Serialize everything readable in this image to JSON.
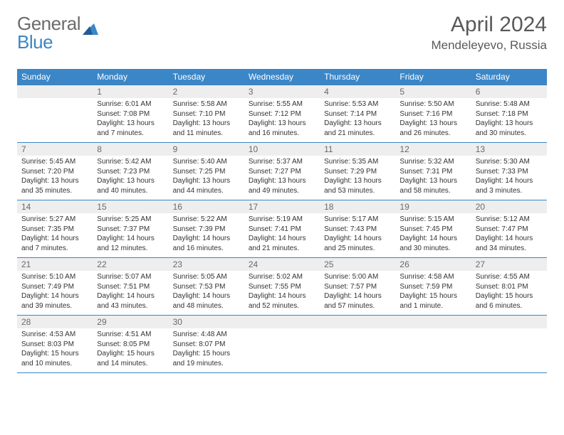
{
  "brand": {
    "part1": "General",
    "part2": "Blue",
    "accent_color": "#3b86c6",
    "text_color": "#6b6b6b"
  },
  "header": {
    "month": "April 2024",
    "location": "Mendeleyevo, Russia"
  },
  "colors": {
    "header_bg": "#3b86c6",
    "header_text": "#ffffff",
    "daynum_bg": "#eeeeee",
    "daynum_text": "#6a6a6a",
    "border": "#3b86c6",
    "body_text": "#333333",
    "page_bg": "#ffffff"
  },
  "daysOfWeek": [
    "Sunday",
    "Monday",
    "Tuesday",
    "Wednesday",
    "Thursday",
    "Friday",
    "Saturday"
  ],
  "weeks": [
    [
      {
        "empty": true
      },
      {
        "day": "1",
        "sunrise": "Sunrise: 6:01 AM",
        "sunset": "Sunset: 7:08 PM",
        "daylight": "Daylight: 13 hours and 7 minutes."
      },
      {
        "day": "2",
        "sunrise": "Sunrise: 5:58 AM",
        "sunset": "Sunset: 7:10 PM",
        "daylight": "Daylight: 13 hours and 11 minutes."
      },
      {
        "day": "3",
        "sunrise": "Sunrise: 5:55 AM",
        "sunset": "Sunset: 7:12 PM",
        "daylight": "Daylight: 13 hours and 16 minutes."
      },
      {
        "day": "4",
        "sunrise": "Sunrise: 5:53 AM",
        "sunset": "Sunset: 7:14 PM",
        "daylight": "Daylight: 13 hours and 21 minutes."
      },
      {
        "day": "5",
        "sunrise": "Sunrise: 5:50 AM",
        "sunset": "Sunset: 7:16 PM",
        "daylight": "Daylight: 13 hours and 26 minutes."
      },
      {
        "day": "6",
        "sunrise": "Sunrise: 5:48 AM",
        "sunset": "Sunset: 7:18 PM",
        "daylight": "Daylight: 13 hours and 30 minutes."
      }
    ],
    [
      {
        "day": "7",
        "sunrise": "Sunrise: 5:45 AM",
        "sunset": "Sunset: 7:20 PM",
        "daylight": "Daylight: 13 hours and 35 minutes."
      },
      {
        "day": "8",
        "sunrise": "Sunrise: 5:42 AM",
        "sunset": "Sunset: 7:23 PM",
        "daylight": "Daylight: 13 hours and 40 minutes."
      },
      {
        "day": "9",
        "sunrise": "Sunrise: 5:40 AM",
        "sunset": "Sunset: 7:25 PM",
        "daylight": "Daylight: 13 hours and 44 minutes."
      },
      {
        "day": "10",
        "sunrise": "Sunrise: 5:37 AM",
        "sunset": "Sunset: 7:27 PM",
        "daylight": "Daylight: 13 hours and 49 minutes."
      },
      {
        "day": "11",
        "sunrise": "Sunrise: 5:35 AM",
        "sunset": "Sunset: 7:29 PM",
        "daylight": "Daylight: 13 hours and 53 minutes."
      },
      {
        "day": "12",
        "sunrise": "Sunrise: 5:32 AM",
        "sunset": "Sunset: 7:31 PM",
        "daylight": "Daylight: 13 hours and 58 minutes."
      },
      {
        "day": "13",
        "sunrise": "Sunrise: 5:30 AM",
        "sunset": "Sunset: 7:33 PM",
        "daylight": "Daylight: 14 hours and 3 minutes."
      }
    ],
    [
      {
        "day": "14",
        "sunrise": "Sunrise: 5:27 AM",
        "sunset": "Sunset: 7:35 PM",
        "daylight": "Daylight: 14 hours and 7 minutes."
      },
      {
        "day": "15",
        "sunrise": "Sunrise: 5:25 AM",
        "sunset": "Sunset: 7:37 PM",
        "daylight": "Daylight: 14 hours and 12 minutes."
      },
      {
        "day": "16",
        "sunrise": "Sunrise: 5:22 AM",
        "sunset": "Sunset: 7:39 PM",
        "daylight": "Daylight: 14 hours and 16 minutes."
      },
      {
        "day": "17",
        "sunrise": "Sunrise: 5:19 AM",
        "sunset": "Sunset: 7:41 PM",
        "daylight": "Daylight: 14 hours and 21 minutes."
      },
      {
        "day": "18",
        "sunrise": "Sunrise: 5:17 AM",
        "sunset": "Sunset: 7:43 PM",
        "daylight": "Daylight: 14 hours and 25 minutes."
      },
      {
        "day": "19",
        "sunrise": "Sunrise: 5:15 AM",
        "sunset": "Sunset: 7:45 PM",
        "daylight": "Daylight: 14 hours and 30 minutes."
      },
      {
        "day": "20",
        "sunrise": "Sunrise: 5:12 AM",
        "sunset": "Sunset: 7:47 PM",
        "daylight": "Daylight: 14 hours and 34 minutes."
      }
    ],
    [
      {
        "day": "21",
        "sunrise": "Sunrise: 5:10 AM",
        "sunset": "Sunset: 7:49 PM",
        "daylight": "Daylight: 14 hours and 39 minutes."
      },
      {
        "day": "22",
        "sunrise": "Sunrise: 5:07 AM",
        "sunset": "Sunset: 7:51 PM",
        "daylight": "Daylight: 14 hours and 43 minutes."
      },
      {
        "day": "23",
        "sunrise": "Sunrise: 5:05 AM",
        "sunset": "Sunset: 7:53 PM",
        "daylight": "Daylight: 14 hours and 48 minutes."
      },
      {
        "day": "24",
        "sunrise": "Sunrise: 5:02 AM",
        "sunset": "Sunset: 7:55 PM",
        "daylight": "Daylight: 14 hours and 52 minutes."
      },
      {
        "day": "25",
        "sunrise": "Sunrise: 5:00 AM",
        "sunset": "Sunset: 7:57 PM",
        "daylight": "Daylight: 14 hours and 57 minutes."
      },
      {
        "day": "26",
        "sunrise": "Sunrise: 4:58 AM",
        "sunset": "Sunset: 7:59 PM",
        "daylight": "Daylight: 15 hours and 1 minute."
      },
      {
        "day": "27",
        "sunrise": "Sunrise: 4:55 AM",
        "sunset": "Sunset: 8:01 PM",
        "daylight": "Daylight: 15 hours and 6 minutes."
      }
    ],
    [
      {
        "day": "28",
        "sunrise": "Sunrise: 4:53 AM",
        "sunset": "Sunset: 8:03 PM",
        "daylight": "Daylight: 15 hours and 10 minutes."
      },
      {
        "day": "29",
        "sunrise": "Sunrise: 4:51 AM",
        "sunset": "Sunset: 8:05 PM",
        "daylight": "Daylight: 15 hours and 14 minutes."
      },
      {
        "day": "30",
        "sunrise": "Sunrise: 4:48 AM",
        "sunset": "Sunset: 8:07 PM",
        "daylight": "Daylight: 15 hours and 19 minutes."
      },
      {
        "empty": true
      },
      {
        "empty": true
      },
      {
        "empty": true
      },
      {
        "empty": true
      }
    ]
  ]
}
